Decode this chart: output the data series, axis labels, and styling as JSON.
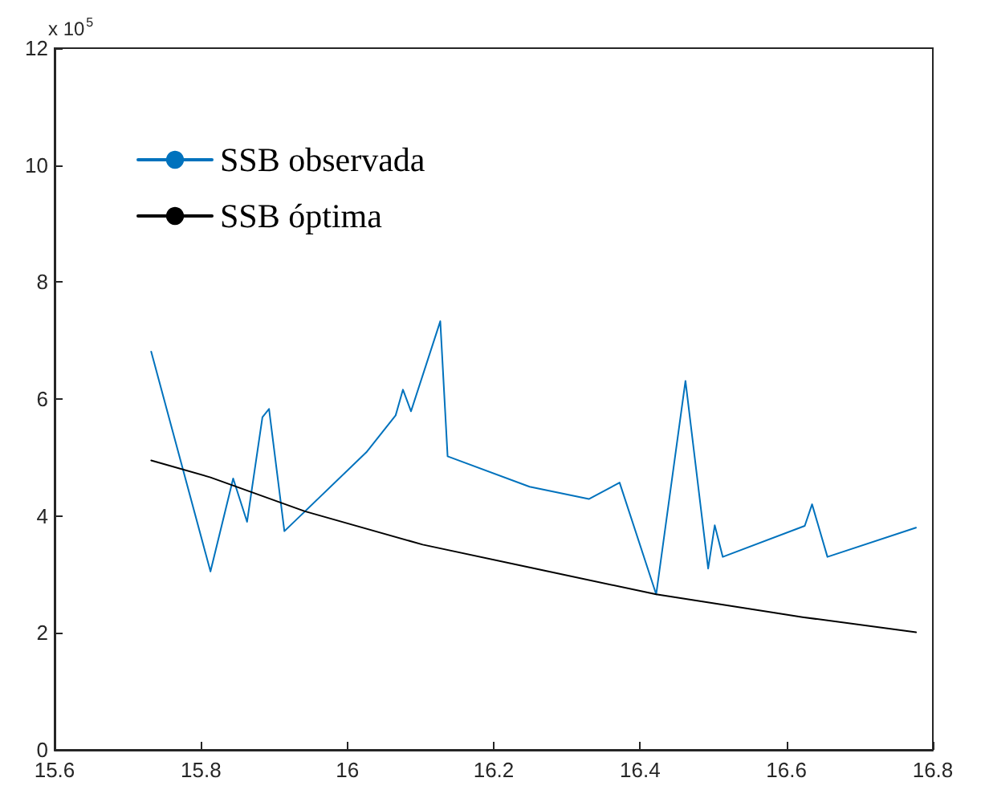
{
  "chart_data": {
    "type": "line",
    "xlim": [
      15.6,
      16.8
    ],
    "xticks": [
      15.6,
      15.8,
      16,
      16.2,
      16.4,
      16.6,
      16.8
    ],
    "ylim": [
      0,
      12
    ],
    "yticks": [
      0,
      2,
      4,
      6,
      8,
      10,
      12
    ],
    "grid": false,
    "legend": "top left",
    "annotations": [
      "x 10$^{5}$"
    ],
    "series": [
      {
        "name": "SSB observada",
        "color": "#0072bd",
        "x": [
          15.732,
          15.813,
          15.844,
          15.863,
          15.884,
          15.893,
          15.914,
          16.026,
          16.066,
          16.076,
          16.087,
          16.127,
          16.137,
          16.249,
          16.33,
          16.372,
          16.422,
          16.462,
          16.493,
          16.502,
          16.513,
          16.625,
          16.635,
          16.656,
          16.777
        ],
        "values": [
          6.81,
          3.05,
          4.64,
          3.9,
          5.69,
          5.83,
          3.74,
          5.09,
          5.72,
          6.16,
          5.79,
          7.33,
          5.02,
          4.5,
          4.29,
          4.57,
          2.66,
          6.31,
          3.1,
          3.84,
          3.3,
          3.83,
          4.2,
          3.3,
          3.8
        ]
      },
      {
        "name": "SSB óptima",
        "color": "#000000",
        "x": [
          15.732,
          15.813,
          15.942,
          16.103,
          16.249,
          16.422,
          16.622,
          16.777
        ],
        "values": [
          4.95,
          4.66,
          4.08,
          3.51,
          3.12,
          2.66,
          2.27,
          2.01
        ]
      }
    ]
  }
}
